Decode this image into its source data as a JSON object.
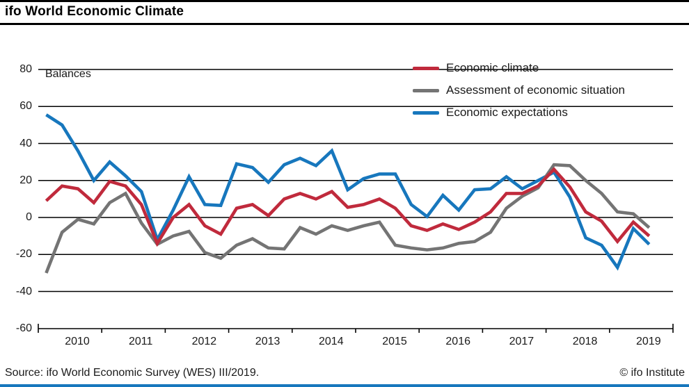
{
  "header": {
    "title": "ifo World Economic Climate"
  },
  "chart": {
    "balances_label": "Balances",
    "legend": [
      {
        "label": "Economic climate",
        "color": "#c02a3c"
      },
      {
        "label": "Assessment of economic situation",
        "color": "#747474"
      },
      {
        "label": "Economic expectations",
        "color": "#1777bd"
      }
    ]
  },
  "footer": {
    "source": "Source: ifo World Economic Survey (WES) III/2019.",
    "copyright": "© ifo Institute"
  },
  "chart_data": {
    "type": "line",
    "title": "ifo World Economic Climate",
    "ylabel": "Balances",
    "ylim": [
      -60,
      80
    ],
    "grid": true,
    "legend_position": "top-right",
    "frequency": "quarterly",
    "x_start": "2010-Q1",
    "x_end": "2019-Q3",
    "x_years": [
      "2010",
      "2011",
      "2012",
      "2013",
      "2014",
      "2015",
      "2016",
      "2017",
      "2018",
      "2019"
    ],
    "y_tick_labels": [
      "80",
      "60",
      "40",
      "20",
      "0",
      "-20",
      "-40",
      "-60"
    ],
    "y_tick_values": [
      80,
      60,
      40,
      20,
      0,
      -20,
      -40,
      -60
    ],
    "y_gridline_values": [
      80,
      60,
      40,
      20,
      0,
      -20,
      -40
    ],
    "series": [
      {
        "name": "Economic expectations",
        "color": "#1777bd",
        "values": [
          55.5,
          50,
          36,
          20,
          30,
          22.5,
          14,
          -12,
          4,
          22,
          7,
          6.5,
          29,
          27,
          19,
          28.5,
          32,
          28,
          36,
          15,
          21,
          23.5,
          23.5,
          7,
          0.5,
          12,
          4,
          15,
          15.5,
          22,
          15.5,
          20,
          24.5,
          11,
          -11,
          -15,
          -27,
          -6,
          -14.5
        ]
      },
      {
        "name": "Assessment of economic situation",
        "color": "#747474",
        "values": [
          -30,
          -8,
          -1,
          -3.5,
          8,
          13,
          -3,
          -14.5,
          -10,
          -7.5,
          -19,
          -22,
          -15,
          -11.5,
          -16.5,
          -17,
          -5.5,
          -9,
          -4.5,
          -7,
          -4.5,
          -2.5,
          -15,
          -16.5,
          -17.5,
          -16.5,
          -14,
          -13,
          -8,
          5,
          11.5,
          16,
          28.5,
          28,
          20,
          13,
          3,
          2,
          -5.5
        ]
      },
      {
        "name": "Economic climate",
        "color": "#c02a3c",
        "values": [
          9,
          17,
          15.5,
          8,
          19.5,
          17,
          7,
          -14,
          0,
          7,
          -4.5,
          -9,
          5,
          7,
          1,
          10,
          13,
          10,
          14,
          5.5,
          7,
          10,
          5,
          -4.5,
          -7,
          -3.5,
          -6.5,
          -2.5,
          3,
          13,
          13,
          17,
          26,
          16.5,
          3,
          -2,
          -13,
          -2.5,
          -10
        ]
      }
    ]
  }
}
